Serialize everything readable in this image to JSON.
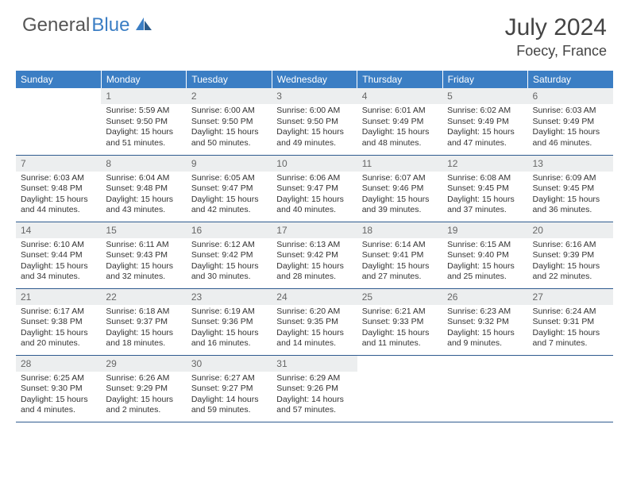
{
  "brand": {
    "part1": "General",
    "part2": "Blue"
  },
  "title": "July 2024",
  "location": "Foecy, France",
  "colors": {
    "header_bg": "#3b7ec4",
    "daynum_bg": "#eceeef",
    "rule": "#2f5b8f"
  },
  "daynames": [
    "Sunday",
    "Monday",
    "Tuesday",
    "Wednesday",
    "Thursday",
    "Friday",
    "Saturday"
  ],
  "weeks": [
    [
      null,
      {
        "n": "1",
        "sr": "5:59 AM",
        "ss": "9:50 PM",
        "dl": "15 hours and 51 minutes."
      },
      {
        "n": "2",
        "sr": "6:00 AM",
        "ss": "9:50 PM",
        "dl": "15 hours and 50 minutes."
      },
      {
        "n": "3",
        "sr": "6:00 AM",
        "ss": "9:50 PM",
        "dl": "15 hours and 49 minutes."
      },
      {
        "n": "4",
        "sr": "6:01 AM",
        "ss": "9:49 PM",
        "dl": "15 hours and 48 minutes."
      },
      {
        "n": "5",
        "sr": "6:02 AM",
        "ss": "9:49 PM",
        "dl": "15 hours and 47 minutes."
      },
      {
        "n": "6",
        "sr": "6:03 AM",
        "ss": "9:49 PM",
        "dl": "15 hours and 46 minutes."
      }
    ],
    [
      {
        "n": "7",
        "sr": "6:03 AM",
        "ss": "9:48 PM",
        "dl": "15 hours and 44 minutes."
      },
      {
        "n": "8",
        "sr": "6:04 AM",
        "ss": "9:48 PM",
        "dl": "15 hours and 43 minutes."
      },
      {
        "n": "9",
        "sr": "6:05 AM",
        "ss": "9:47 PM",
        "dl": "15 hours and 42 minutes."
      },
      {
        "n": "10",
        "sr": "6:06 AM",
        "ss": "9:47 PM",
        "dl": "15 hours and 40 minutes."
      },
      {
        "n": "11",
        "sr": "6:07 AM",
        "ss": "9:46 PM",
        "dl": "15 hours and 39 minutes."
      },
      {
        "n": "12",
        "sr": "6:08 AM",
        "ss": "9:45 PM",
        "dl": "15 hours and 37 minutes."
      },
      {
        "n": "13",
        "sr": "6:09 AM",
        "ss": "9:45 PM",
        "dl": "15 hours and 36 minutes."
      }
    ],
    [
      {
        "n": "14",
        "sr": "6:10 AM",
        "ss": "9:44 PM",
        "dl": "15 hours and 34 minutes."
      },
      {
        "n": "15",
        "sr": "6:11 AM",
        "ss": "9:43 PM",
        "dl": "15 hours and 32 minutes."
      },
      {
        "n": "16",
        "sr": "6:12 AM",
        "ss": "9:42 PM",
        "dl": "15 hours and 30 minutes."
      },
      {
        "n": "17",
        "sr": "6:13 AM",
        "ss": "9:42 PM",
        "dl": "15 hours and 28 minutes."
      },
      {
        "n": "18",
        "sr": "6:14 AM",
        "ss": "9:41 PM",
        "dl": "15 hours and 27 minutes."
      },
      {
        "n": "19",
        "sr": "6:15 AM",
        "ss": "9:40 PM",
        "dl": "15 hours and 25 minutes."
      },
      {
        "n": "20",
        "sr": "6:16 AM",
        "ss": "9:39 PM",
        "dl": "15 hours and 22 minutes."
      }
    ],
    [
      {
        "n": "21",
        "sr": "6:17 AM",
        "ss": "9:38 PM",
        "dl": "15 hours and 20 minutes."
      },
      {
        "n": "22",
        "sr": "6:18 AM",
        "ss": "9:37 PM",
        "dl": "15 hours and 18 minutes."
      },
      {
        "n": "23",
        "sr": "6:19 AM",
        "ss": "9:36 PM",
        "dl": "15 hours and 16 minutes."
      },
      {
        "n": "24",
        "sr": "6:20 AM",
        "ss": "9:35 PM",
        "dl": "15 hours and 14 minutes."
      },
      {
        "n": "25",
        "sr": "6:21 AM",
        "ss": "9:33 PM",
        "dl": "15 hours and 11 minutes."
      },
      {
        "n": "26",
        "sr": "6:23 AM",
        "ss": "9:32 PM",
        "dl": "15 hours and 9 minutes."
      },
      {
        "n": "27",
        "sr": "6:24 AM",
        "ss": "9:31 PM",
        "dl": "15 hours and 7 minutes."
      }
    ],
    [
      {
        "n": "28",
        "sr": "6:25 AM",
        "ss": "9:30 PM",
        "dl": "15 hours and 4 minutes."
      },
      {
        "n": "29",
        "sr": "6:26 AM",
        "ss": "9:29 PM",
        "dl": "15 hours and 2 minutes."
      },
      {
        "n": "30",
        "sr": "6:27 AM",
        "ss": "9:27 PM",
        "dl": "14 hours and 59 minutes."
      },
      {
        "n": "31",
        "sr": "6:29 AM",
        "ss": "9:26 PM",
        "dl": "14 hours and 57 minutes."
      },
      null,
      null,
      null
    ]
  ],
  "labels": {
    "sunrise": "Sunrise: ",
    "sunset": "Sunset: ",
    "daylight": "Daylight: "
  }
}
